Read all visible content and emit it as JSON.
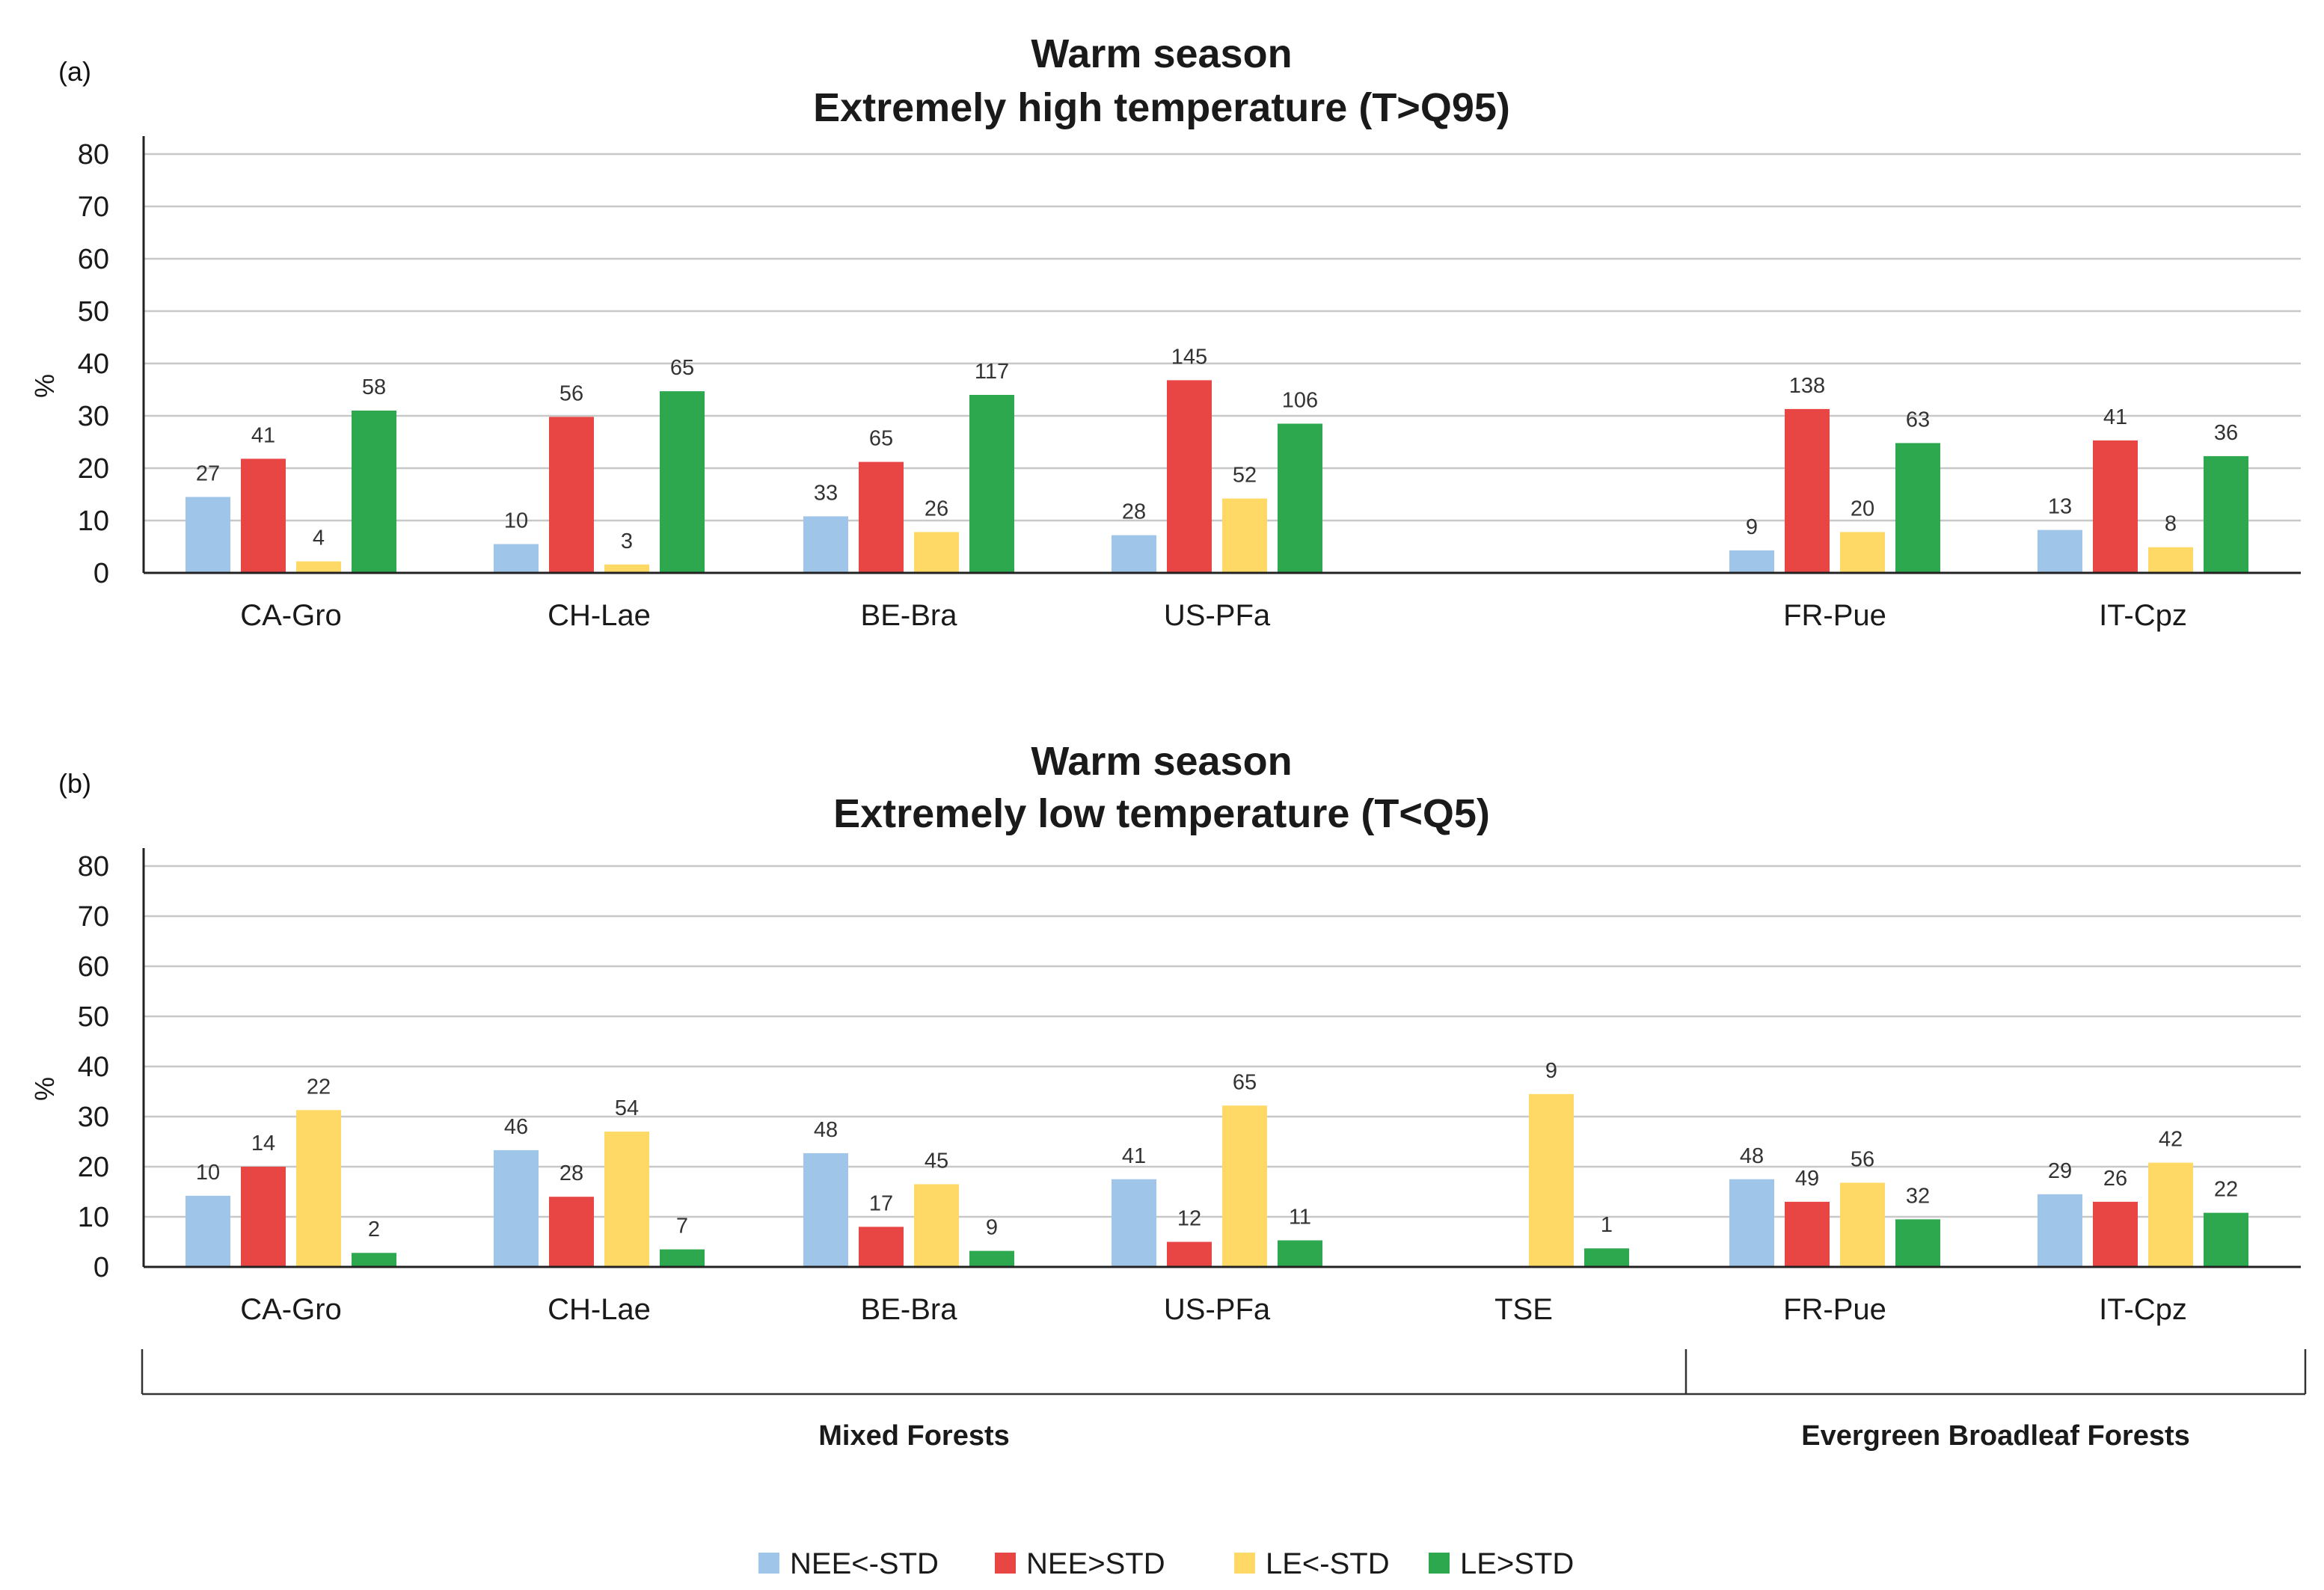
{
  "colors": {
    "NEE<-STD": "#9fc5e8",
    "NEE>STD": "#e84545",
    "LE<-STD": "#ffd966",
    "LE>STD": "#2ea84f"
  },
  "legend": [
    "NEE<-STD",
    "NEE>STD",
    "LE<-STD",
    "LE>STD"
  ],
  "groups": [
    {
      "label": "Mixed Forests"
    },
    {
      "label": "Evergreen Broadleaf Forests"
    }
  ],
  "ylabel": "%",
  "chart_data": [
    {
      "type": "bar",
      "panel": "(a)",
      "title": "Warm season",
      "subtitle": "Extremely high temperature (T>Q95)",
      "ylabel": "%",
      "ylim": [
        0,
        80
      ],
      "yticks": [
        0,
        10,
        20,
        30,
        40,
        50,
        60,
        70,
        80
      ],
      "categories": [
        "CA-Gro",
        "CH-Lae",
        "BE-Bra",
        "US-PFa",
        "",
        "FR-Pue",
        "IT-Cpz"
      ],
      "series": [
        {
          "name": "NEE<-STD",
          "values": [
            14.5,
            5.5,
            10.8,
            7.2,
            null,
            4.3,
            8.2
          ],
          "labels": [
            "27",
            "10",
            "33",
            "28",
            "",
            "9",
            "13"
          ]
        },
        {
          "name": "NEE>STD",
          "values": [
            21.8,
            29.8,
            21.2,
            36.8,
            null,
            31.3,
            25.3
          ],
          "labels": [
            "41",
            "56",
            "65",
            "145",
            "",
            "138",
            "41"
          ]
        },
        {
          "name": "LE<-STD",
          "values": [
            2.2,
            1.6,
            7.8,
            14.2,
            null,
            7.8,
            4.9
          ],
          "labels": [
            "4",
            "3",
            "26",
            "52",
            "",
            "20",
            "8"
          ]
        },
        {
          "name": "LE>STD",
          "values": [
            31.0,
            34.7,
            34.0,
            28.5,
            null,
            24.8,
            22.3
          ],
          "labels": [
            "58",
            "65",
            "117",
            "106",
            "",
            "63",
            "36"
          ]
        }
      ]
    },
    {
      "type": "bar",
      "panel": "(b)",
      "title": "Warm season",
      "subtitle": "Extremely low temperature (T<Q5)",
      "ylabel": "%",
      "ylim": [
        0,
        80
      ],
      "yticks": [
        0,
        10,
        20,
        30,
        40,
        50,
        60,
        70,
        80
      ],
      "categories": [
        "CA-Gro",
        "CH-Lae",
        "BE-Bra",
        "US-PFa",
        "TSE",
        "FR-Pue",
        "IT-Cpz"
      ],
      "series": [
        {
          "name": "NEE<-STD",
          "values": [
            14.2,
            23.3,
            22.7,
            17.5,
            null,
            17.5,
            14.5
          ],
          "labels": [
            "10",
            "46",
            "48",
            "41",
            "",
            "48",
            "29"
          ]
        },
        {
          "name": "NEE>STD",
          "values": [
            20.0,
            14.0,
            8.0,
            5.0,
            null,
            13.0,
            13.0
          ],
          "labels": [
            "14",
            "28",
            "17",
            "12",
            "",
            "49",
            "26"
          ]
        },
        {
          "name": "LE<-STD",
          "values": [
            31.3,
            27.0,
            16.5,
            32.2,
            34.5,
            16.8,
            20.8
          ],
          "labels": [
            "22",
            "54",
            "45",
            "65",
            "9",
            "56",
            "42"
          ]
        },
        {
          "name": "LE>STD",
          "values": [
            2.8,
            3.5,
            3.2,
            5.3,
            3.7,
            9.5,
            10.8
          ],
          "labels": [
            "2",
            "7",
            "9",
            "11",
            "1",
            "32",
            "22"
          ]
        }
      ]
    }
  ]
}
